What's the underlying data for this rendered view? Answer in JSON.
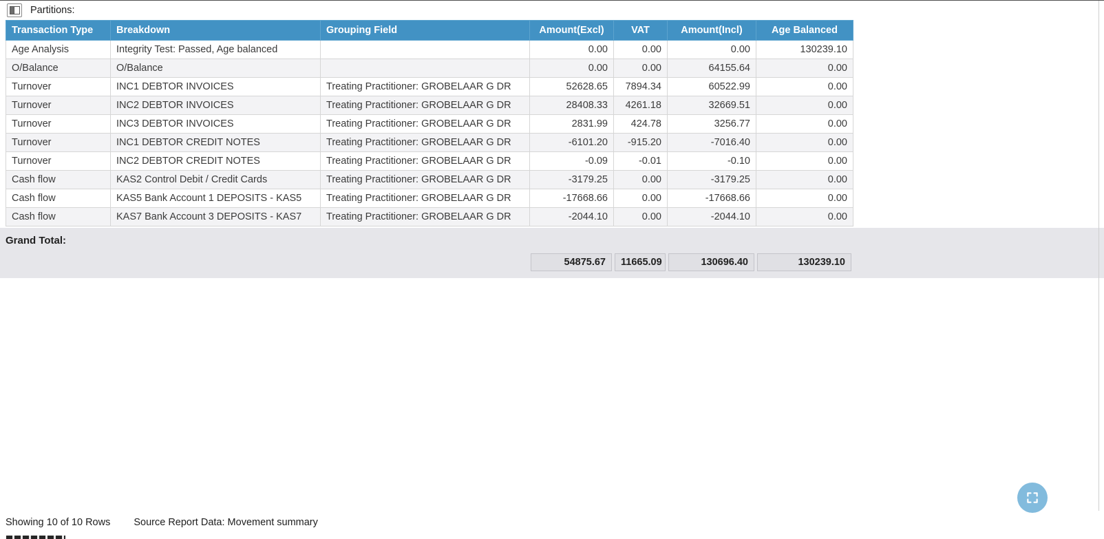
{
  "toolbar": {
    "label": "Partitions:"
  },
  "table": {
    "columns": [
      "Transaction Type",
      "Breakdown",
      "Grouping Field",
      "Amount(Excl)",
      "VAT",
      "Amount(Incl)",
      "Age Balanced"
    ],
    "rows": [
      [
        "Age Analysis",
        "Integrity Test: Passed, Age balanced",
        "",
        "0.00",
        "0.00",
        "0.00",
        "130239.10"
      ],
      [
        "O/Balance",
        "O/Balance",
        "",
        "0.00",
        "0.00",
        "64155.64",
        "0.00"
      ],
      [
        "Turnover",
        "INC1 DEBTOR INVOICES",
        "Treating Practitioner: GROBELAAR G DR",
        "52628.65",
        "7894.34",
        "60522.99",
        "0.00"
      ],
      [
        "Turnover",
        "INC2 DEBTOR INVOICES",
        "Treating Practitioner: GROBELAAR G DR",
        "28408.33",
        "4261.18",
        "32669.51",
        "0.00"
      ],
      [
        "Turnover",
        "INC3 DEBTOR INVOICES",
        "Treating Practitioner: GROBELAAR G DR",
        "2831.99",
        "424.78",
        "3256.77",
        "0.00"
      ],
      [
        "Turnover",
        "INC1 DEBTOR CREDIT NOTES",
        "Treating Practitioner: GROBELAAR G DR",
        "-6101.20",
        "-915.20",
        "-7016.40",
        "0.00"
      ],
      [
        "Turnover",
        "INC2 DEBTOR CREDIT NOTES",
        "Treating Practitioner: GROBELAAR G DR",
        "-0.09",
        "-0.01",
        "-0.10",
        "0.00"
      ],
      [
        "Cash flow",
        "KAS2 Control Debit / Credit Cards",
        "Treating Practitioner: GROBELAAR G DR",
        "-3179.25",
        "0.00",
        "-3179.25",
        "0.00"
      ],
      [
        "Cash flow",
        "KAS5 Bank Account 1 DEPOSITS - KAS5",
        "Treating Practitioner: GROBELAAR G DR",
        "-17668.66",
        "0.00",
        "-17668.66",
        "0.00"
      ],
      [
        "Cash flow",
        "KAS7 Bank Account 3 DEPOSITS - KAS7",
        "Treating Practitioner: GROBELAAR G DR",
        "-2044.10",
        "0.00",
        "-2044.10",
        "0.00"
      ]
    ],
    "grand_total": {
      "label": "Grand Total:",
      "values": [
        "54875.67",
        "11665.09",
        "130696.40",
        "130239.10"
      ]
    }
  },
  "status_bar": {
    "rows_text": "Showing 10 of 10 Rows",
    "source_text": "Source Report Data: Movement summary"
  },
  "colors": {
    "header_bg": "#4292c4",
    "alt_row_bg": "#f3f3f5",
    "grand_total_bg": "#e6e6ea",
    "fab_bg": "#82bbdd"
  }
}
